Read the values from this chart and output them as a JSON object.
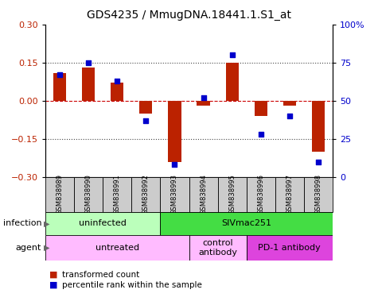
{
  "title": "GDS4235 / MmugDNA.18441.1.S1_at",
  "samples": [
    "GSM838989",
    "GSM838990",
    "GSM838991",
    "GSM838992",
    "GSM838993",
    "GSM838994",
    "GSM838995",
    "GSM838996",
    "GSM838997",
    "GSM838998"
  ],
  "transformed_count": [
    0.11,
    0.13,
    0.07,
    -0.05,
    -0.24,
    -0.02,
    0.15,
    -0.06,
    -0.02,
    -0.2
  ],
  "percentile_rank": [
    67,
    75,
    63,
    37,
    8,
    52,
    80,
    28,
    40,
    10
  ],
  "ylim_left": [
    -0.3,
    0.3
  ],
  "ylim_right": [
    0,
    100
  ],
  "yticks_left": [
    -0.3,
    -0.15,
    0,
    0.15,
    0.3
  ],
  "yticks_right": [
    0,
    25,
    50,
    75,
    100
  ],
  "bar_color": "#bb2200",
  "dot_color": "#0000cc",
  "hline_color": "#cc0000",
  "dotted_color": "#444444",
  "infection_groups": [
    {
      "label": "uninfected",
      "start": 0,
      "end": 4,
      "color": "#bbffbb"
    },
    {
      "label": "SIVmac251",
      "start": 4,
      "end": 10,
      "color": "#44dd44"
    }
  ],
  "agent_groups": [
    {
      "label": "untreated",
      "start": 0,
      "end": 5,
      "color": "#ffbbff"
    },
    {
      "label": "control\nantibody",
      "start": 5,
      "end": 7,
      "color": "#ffbbff"
    },
    {
      "label": "PD-1 antibody",
      "start": 7,
      "end": 10,
      "color": "#dd44dd"
    }
  ],
  "legend_items": [
    {
      "label": "transformed count",
      "color": "#bb2200"
    },
    {
      "label": "percentile rank within the sample",
      "color": "#0000cc"
    }
  ],
  "infection_label": "infection",
  "agent_label": "agent",
  "bar_width": 0.45,
  "sample_box_color": "#cccccc",
  "title_fontsize": 10
}
